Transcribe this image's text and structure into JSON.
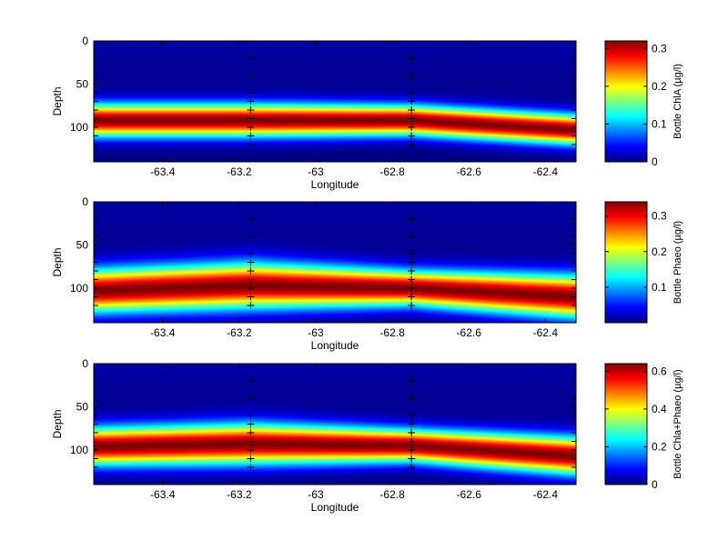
{
  "chart_data": [
    {
      "type": "heatmap",
      "xlabel": "Longitude",
      "ylabel": "Depth",
      "colorbar_label": "Bottle ChlA (µg/l)",
      "xticks": [
        -63.4,
        -63.2,
        -63,
        -62.8,
        -62.6,
        -62.4
      ],
      "xtick_labels": [
        "-63.4",
        "-63.2",
        "-63",
        "-62.8",
        "-62.6",
        "-62.4"
      ],
      "yticks": [
        0,
        50,
        100
      ],
      "ytick_labels": [
        "0",
        "50",
        "100"
      ],
      "cbar_ticks": [
        0,
        0.1,
        0.2,
        0.3
      ],
      "cbar_tick_labels": [
        "0",
        "0.1",
        "0.2",
        "0.3"
      ],
      "xlim": [
        -63.58,
        -62.32
      ],
      "ylim": [
        0,
        140
      ],
      "clim": [
        0,
        0.32
      ],
      "colormap": "jet",
      "stations": [
        -63.17,
        -62.75
      ],
      "sample_depths": [
        20,
        40,
        60,
        70,
        80,
        90,
        100,
        110,
        120
      ],
      "edge_ticks": [
        20,
        40,
        60,
        70,
        80,
        90,
        100,
        110,
        120
      ],
      "profiles": [
        {
          "lon": -63.58,
          "max_depth": 92,
          "max_value": 0.32,
          "width": 13
        },
        {
          "lon": -63.17,
          "max_depth": 92,
          "max_value": 0.32,
          "width": 13
        },
        {
          "lon": -62.75,
          "max_depth": 92,
          "max_value": 0.32,
          "width": 12
        },
        {
          "lon": -62.32,
          "max_depth": 103,
          "max_value": 0.32,
          "width": 12
        }
      ]
    },
    {
      "type": "heatmap",
      "xlabel": "Longitude",
      "ylabel": "Depth",
      "colorbar_label": "Bottle Phaeo (µg/l)",
      "xticks": [
        -63.4,
        -63.2,
        -63,
        -62.8,
        -62.6,
        -62.4
      ],
      "xtick_labels": [
        "-63.4",
        "-63.2",
        "-63",
        "-62.8",
        "-62.6",
        "-62.4"
      ],
      "yticks": [
        0,
        50,
        100
      ],
      "ytick_labels": [
        "0",
        "50",
        "100"
      ],
      "cbar_ticks": [
        0.1,
        0.2,
        0.3
      ],
      "cbar_tick_labels": [
        "0.1",
        "0.2",
        "0.3"
      ],
      "xlim": [
        -63.58,
        -62.32
      ],
      "ylim": [
        0,
        140
      ],
      "clim": [
        0,
        0.34
      ],
      "colormap": "jet",
      "stations": [
        -63.17,
        -62.75
      ],
      "sample_depths": [
        20,
        40,
        60,
        70,
        80,
        90,
        100,
        110,
        120
      ],
      "edge_ticks": [
        20,
        40,
        60,
        70,
        80,
        90,
        100,
        110,
        120
      ],
      "profiles": [
        {
          "lon": -63.58,
          "max_depth": 103,
          "max_value": 0.34,
          "width": 17
        },
        {
          "lon": -63.17,
          "max_depth": 97,
          "max_value": 0.34,
          "width": 18
        },
        {
          "lon": -62.75,
          "max_depth": 100,
          "max_value": 0.34,
          "width": 14
        },
        {
          "lon": -62.32,
          "max_depth": 110,
          "max_value": 0.34,
          "width": 17
        }
      ]
    },
    {
      "type": "heatmap",
      "xlabel": "Longitude",
      "ylabel": "Depth",
      "colorbar_label": "Bottle Chla+Phaeo (µg/l)",
      "xticks": [
        -63.4,
        -63.2,
        -63,
        -62.8,
        -62.6,
        -62.4
      ],
      "xtick_labels": [
        "-63.4",
        "-63.2",
        "-63",
        "-62.8",
        "-62.6",
        "-62.4"
      ],
      "yticks": [
        0,
        50,
        100
      ],
      "ytick_labels": [
        "0",
        "50",
        "100"
      ],
      "cbar_ticks": [
        0,
        0.2,
        0.4,
        0.6
      ],
      "cbar_tick_labels": [
        "0",
        "0.2",
        "0.4",
        "0.6"
      ],
      "xlim": [
        -63.58,
        -62.32
      ],
      "ylim": [
        0,
        140
      ],
      "clim": [
        0,
        0.64
      ],
      "colormap": "jet",
      "stations": [
        -63.17,
        -62.75
      ],
      "sample_depths": [
        20,
        40,
        60,
        70,
        80,
        90,
        100,
        110,
        120
      ],
      "edge_ticks": [
        20,
        40,
        60,
        70,
        80,
        90,
        100,
        110,
        120
      ],
      "profiles": [
        {
          "lon": -63.58,
          "max_depth": 96,
          "max_value": 0.64,
          "width": 15
        },
        {
          "lon": -63.17,
          "max_depth": 93,
          "max_value": 0.64,
          "width": 16
        },
        {
          "lon": -62.75,
          "max_depth": 95,
          "max_value": 0.64,
          "width": 13
        },
        {
          "lon": -62.32,
          "max_depth": 107,
          "max_value": 0.64,
          "width": 15
        }
      ]
    }
  ]
}
